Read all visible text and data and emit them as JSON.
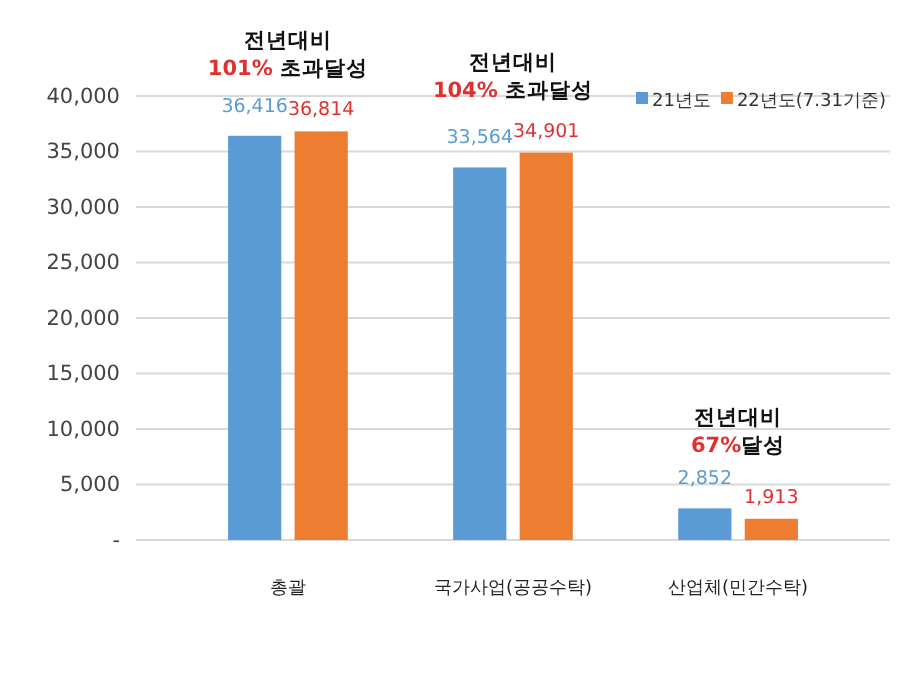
{
  "chart_data": {
    "type": "bar",
    "categories": [
      "총괄",
      "국가사업(공공수탁)",
      "산업체(민간수탁)"
    ],
    "series": [
      {
        "name": "21년도",
        "color": "#5b9bd5",
        "values": [
          36416,
          33564,
          2852
        ],
        "value_labels": [
          "36,416",
          "33,564",
          "2,852"
        ]
      },
      {
        "name": "22년도(7.31기준)",
        "color": "#ed7d31",
        "values": [
          36814,
          34901,
          1913
        ],
        "value_labels": [
          "36,814",
          "34,901",
          "1,913"
        ]
      }
    ],
    "ylim": [
      0,
      40000
    ],
    "yticks": [
      {
        "value": 0,
        "label": "-"
      },
      {
        "value": 5000,
        "label": "5,000"
      },
      {
        "value": 10000,
        "label": "10,000"
      },
      {
        "value": 15000,
        "label": "15,000"
      },
      {
        "value": 20000,
        "label": "20,000"
      },
      {
        "value": 25000,
        "label": "25,000"
      },
      {
        "value": 30000,
        "label": "30,000"
      },
      {
        "value": 35000,
        "label": "35,000"
      },
      {
        "value": 40000,
        "label": "40,000"
      }
    ],
    "grid": "y",
    "legend": "top right",
    "annotations": [
      "전년대비\n101% 초과달성",
      "전년대비\n104% 초과달성",
      "전년대비\n67%달성"
    ]
  }
}
